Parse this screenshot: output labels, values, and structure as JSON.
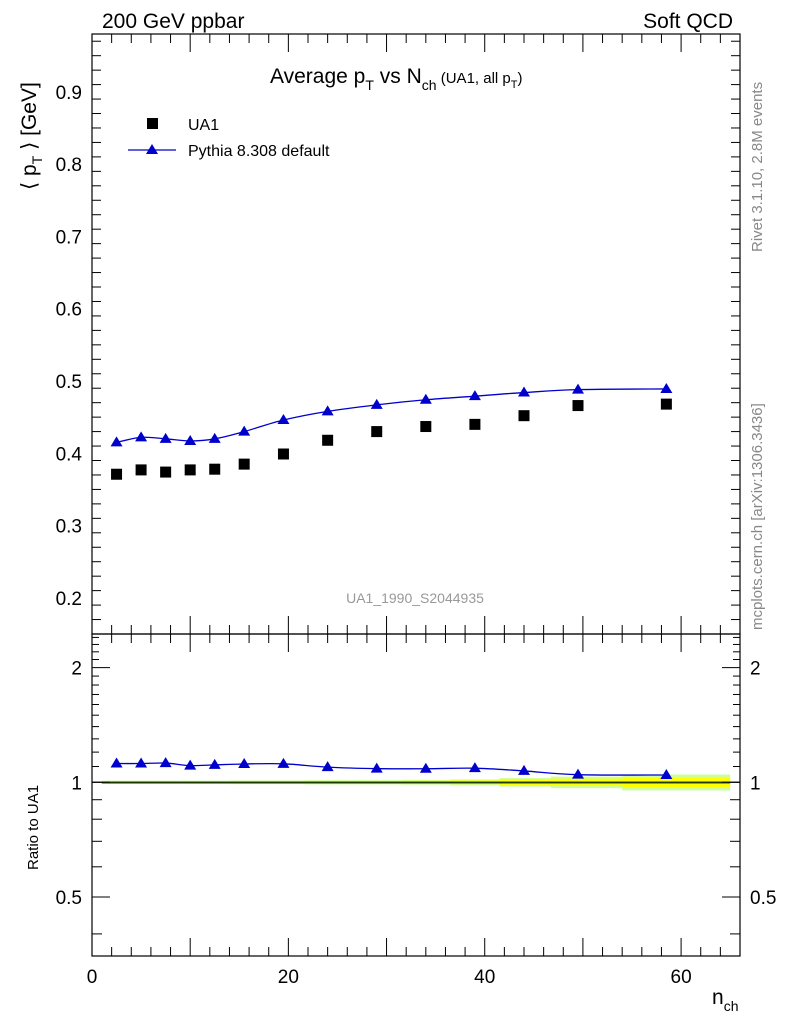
{
  "header": {
    "energy_label": "200 GeV ppbar",
    "category_label": "Soft QCD"
  },
  "side_labels": {
    "rivet": "Rivet 3.1.10,  2.8M events",
    "mcplots": "mcplots.cern.ch [arXiv:1306.3436]"
  },
  "watermark": "UA1_1990_S2044935",
  "colors": {
    "data": "#000000",
    "mc": "#0000cc",
    "band_inner": "#ffff00",
    "band_outer": "#ccff99",
    "side_text": "#888888"
  },
  "chart_data": [
    {
      "type": "scatter",
      "panel": "main",
      "title": "Average p_T vs N_ch (UA1, all p_T)",
      "title_parts": {
        "main": "Average p",
        "sub1": "T",
        "mid": " vs N",
        "sub2": "ch",
        "small": " (UA1, all p",
        "small_sub": "T",
        "small_close": ")"
      },
      "ylabel": "⟨ p_T ⟩ [GeV]",
      "ylabel_parts": {
        "open": "⟨ p",
        "sub": "T",
        "close": " ⟩ [GeV]"
      },
      "xlim": [
        0,
        66
      ],
      "ylim": [
        0.15,
        0.98
      ],
      "yticks": [
        0.2,
        0.3,
        0.4,
        0.5,
        0.6,
        0.7,
        0.8,
        0.9
      ],
      "ytick_labels": [
        "0.2",
        "0.3",
        "0.4",
        "0.5",
        "0.6",
        "0.7",
        "0.8",
        "0.9"
      ],
      "legend_position": "top-left",
      "series": [
        {
          "name": "UA1",
          "marker": "square",
          "x": [
            2.5,
            5,
            7.5,
            10,
            12.5,
            15.5,
            19.5,
            24,
            29,
            34,
            39,
            44,
            49.5,
            58.5
          ],
          "y": [
            0.371,
            0.377,
            0.374,
            0.377,
            0.378,
            0.385,
            0.399,
            0.418,
            0.43,
            0.437,
            0.44,
            0.452,
            0.466,
            0.468
          ]
        },
        {
          "name": "Pythia 8.308 default",
          "marker": "triangle",
          "x": [
            2.5,
            5,
            7.5,
            10,
            12.5,
            15.5,
            19.5,
            24,
            29,
            34,
            39,
            44,
            49.5,
            58.5
          ],
          "y": [
            0.415,
            0.422,
            0.42,
            0.417,
            0.42,
            0.43,
            0.446,
            0.458,
            0.467,
            0.474,
            0.479,
            0.484,
            0.488,
            0.489
          ]
        }
      ]
    },
    {
      "type": "scatter",
      "panel": "ratio",
      "ylabel": "Ratio to UA1",
      "xlabel": "n_ch",
      "xlabel_parts": {
        "main": "n",
        "sub": "ch"
      },
      "xlim": [
        0,
        66
      ],
      "ylim": [
        0.35,
        2.45
      ],
      "xticks": [
        0,
        20,
        40,
        60
      ],
      "xtick_labels": [
        "0",
        "20",
        "40",
        "60"
      ],
      "yticks": [
        0.5,
        1,
        2
      ],
      "ytick_labels": [
        "0.5",
        "1",
        "2"
      ],
      "series": [
        {
          "name": "Pythia 8.308 default",
          "marker": "triangle",
          "x": [
            2.5,
            5,
            7.5,
            10,
            12.5,
            15.5,
            19.5,
            24,
            29,
            34,
            39,
            44,
            49.5,
            58.5
          ],
          "y": [
            1.12,
            1.12,
            1.123,
            1.106,
            1.111,
            1.117,
            1.118,
            1.096,
            1.086,
            1.085,
            1.089,
            1.071,
            1.047,
            1.045
          ]
        }
      ]
    }
  ]
}
